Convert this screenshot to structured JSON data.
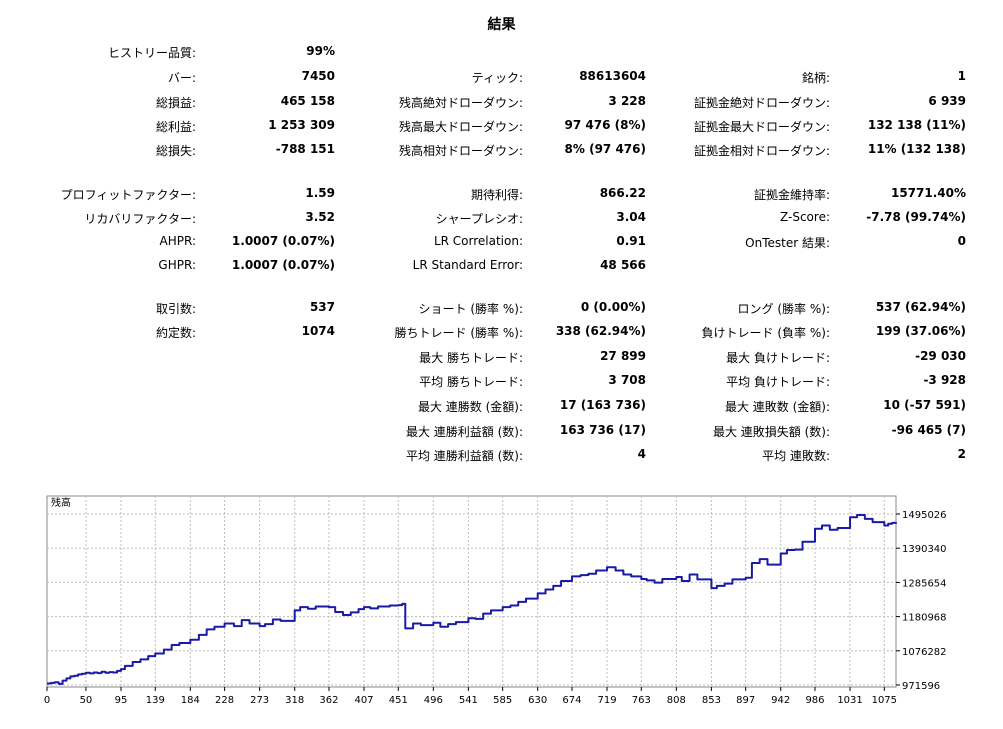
{
  "report": {
    "title": "結果",
    "history_quality": {
      "label": "ヒストリー品質:",
      "value": "99%"
    },
    "rows": [
      {
        "top": 69,
        "cells": [
          {
            "label": "バー:",
            "value": "7450"
          },
          {
            "label": "ティック:",
            "value": "88613604"
          },
          {
            "label": "銘柄:",
            "value": "1"
          }
        ]
      },
      {
        "top": 94,
        "cells": [
          {
            "label": "総損益:",
            "value": "465 158"
          },
          {
            "label": "残高絶対ドローダウン:",
            "value": "3 228"
          },
          {
            "label": "証拠金絶対ドローダウン:",
            "value": "6 939"
          }
        ]
      },
      {
        "top": 118,
        "cells": [
          {
            "label": "総利益:",
            "value": "1 253 309"
          },
          {
            "label": "残高最大ドローダウン:",
            "value": "97 476 (8%)"
          },
          {
            "label": "証拠金最大ドローダウン:",
            "value": "132 138 (11%)"
          }
        ]
      },
      {
        "top": 142,
        "cells": [
          {
            "label": "総損失:",
            "value": "-788 151"
          },
          {
            "label": "残高相対ドローダウン:",
            "value": "8% (97 476)"
          },
          {
            "label": "証拠金相対ドローダウン:",
            "value": "11% (132 138)"
          }
        ]
      },
      {
        "top": 186,
        "cells": [
          {
            "label": "プロフィットファクター:",
            "value": "1.59"
          },
          {
            "label": "期待利得:",
            "value": "866.22"
          },
          {
            "label": "証拠金維持率:",
            "value": "15771.40%"
          }
        ]
      },
      {
        "top": 210,
        "cells": [
          {
            "label": "リカバリファクター:",
            "value": "3.52"
          },
          {
            "label": "シャープレシオ:",
            "value": "3.04"
          },
          {
            "label": "Z-Score:",
            "value": "-7.78 (99.74%)"
          }
        ]
      },
      {
        "top": 234,
        "cells": [
          {
            "label": "AHPR:",
            "value": "1.0007 (0.07%)"
          },
          {
            "label": "LR Correlation:",
            "value": "0.91"
          },
          {
            "label": "OnTester 結果:",
            "value": "0"
          }
        ]
      },
      {
        "top": 258,
        "cells": [
          {
            "label": "GHPR:",
            "value": "1.0007 (0.07%)"
          },
          {
            "label": "LR Standard Error:",
            "value": "48 566"
          },
          {
            "label": "",
            "value": ""
          }
        ]
      },
      {
        "top": 300,
        "cells": [
          {
            "label": "取引数:",
            "value": "537"
          },
          {
            "label": "ショート (勝率 %):",
            "value": "0 (0.00%)"
          },
          {
            "label": "ロング (勝率 %):",
            "value": "537 (62.94%)"
          }
        ]
      },
      {
        "top": 324,
        "cells": [
          {
            "label": "約定数:",
            "value": "1074"
          },
          {
            "label": "勝ちトレード (勝率 %):",
            "value": "338 (62.94%)"
          },
          {
            "label": "負けトレード (負率 %):",
            "value": "199 (37.06%)"
          }
        ]
      },
      {
        "top": 349,
        "cells": [
          {
            "label": "",
            "value": ""
          },
          {
            "label": "最大 勝ちトレード:",
            "value": "27 899"
          },
          {
            "label": "最大 負けトレード:",
            "value": "-29 030"
          }
        ]
      },
      {
        "top": 373,
        "cells": [
          {
            "label": "",
            "value": ""
          },
          {
            "label": "平均 勝ちトレード:",
            "value": "3 708"
          },
          {
            "label": "平均 負けトレード:",
            "value": "-3 928"
          }
        ]
      },
      {
        "top": 398,
        "cells": [
          {
            "label": "",
            "value": ""
          },
          {
            "label": "最大 連勝数 (金額):",
            "value": "17 (163 736)"
          },
          {
            "label": "最大 連敗数 (金額):",
            "value": "10 (-57 591)"
          }
        ]
      },
      {
        "top": 423,
        "cells": [
          {
            "label": "",
            "value": ""
          },
          {
            "label": "最大 連勝利益額 (数):",
            "value": "163 736 (17)"
          },
          {
            "label": "最大 連敗損失額 (数):",
            "value": "-96 465 (7)"
          }
        ]
      },
      {
        "top": 447,
        "cells": [
          {
            "label": "",
            "value": ""
          },
          {
            "label": "平均 連勝利益額 (数):",
            "value": "4"
          },
          {
            "label": "平均 連敗数:",
            "value": "2"
          }
        ]
      }
    ]
  },
  "chart_data": {
    "type": "line",
    "title": "残高",
    "color": "#1a1aa8",
    "x_ticks": [
      "0",
      "50",
      "95",
      "139",
      "184",
      "228",
      "273",
      "318",
      "362",
      "407",
      "451",
      "496",
      "541",
      "585",
      "630",
      "674",
      "719",
      "763",
      "808",
      "853",
      "897",
      "942",
      "986",
      "1031",
      "1075"
    ],
    "y_ticks": [
      "1495026",
      "1390340",
      "1285654",
      "1180968",
      "1076282",
      "971596"
    ],
    "xlim": [
      0,
      1090
    ],
    "ylim": [
      971596,
      1495026
    ],
    "grid": true,
    "series": [
      {
        "x": [
          0,
          5,
          10,
          15,
          20,
          25,
          30,
          35,
          40,
          45,
          50,
          55,
          60,
          65,
          70,
          75,
          80,
          85,
          90,
          95,
          100,
          110,
          120,
          130,
          139,
          150,
          160,
          170,
          184,
          195,
          205,
          215,
          228,
          240,
          250,
          260,
          273,
          280,
          290,
          300,
          318,
          325,
          335,
          345,
          362,
          370,
          380,
          390,
          400,
          407,
          415,
          425,
          440,
          451,
          456,
          460,
          470,
          480,
          496,
          505,
          515,
          525,
          541,
          550,
          560,
          570,
          585,
          595,
          605,
          615,
          630,
          640,
          650,
          660,
          674,
          685,
          695,
          705,
          719,
          730,
          740,
          750,
          763,
          770,
          780,
          790,
          808,
          815,
          825,
          835,
          853,
          860,
          870,
          880,
          897,
          905,
          915,
          925,
          942,
          950,
          960,
          970,
          986,
          995,
          1005,
          1015,
          1031,
          1040,
          1050,
          1060,
          1075,
          1080,
          1085,
          1090
        ],
        "y": [
          976000,
          978000,
          980000,
          975000,
          985000,
          992000,
          998000,
          1000000,
          1004000,
          1006000,
          1009000,
          1007000,
          1010000,
          1008000,
          1012000,
          1009000,
          1011000,
          1010000,
          1015000,
          1020000,
          1030000,
          1042000,
          1050000,
          1060000,
          1068000,
          1080000,
          1094000,
          1100000,
          1110000,
          1125000,
          1142000,
          1150000,
          1160000,
          1152000,
          1170000,
          1160000,
          1152000,
          1158000,
          1172000,
          1168000,
          1200000,
          1210000,
          1205000,
          1212000,
          1210000,
          1195000,
          1186000,
          1194000,
          1204000,
          1210000,
          1206000,
          1212000,
          1215000,
          1216000,
          1220000,
          1145000,
          1160000,
          1155000,
          1162000,
          1150000,
          1158000,
          1164000,
          1176000,
          1174000,
          1190000,
          1200000,
          1210000,
          1215000,
          1226000,
          1236000,
          1252000,
          1264000,
          1275000,
          1290000,
          1304000,
          1308000,
          1312000,
          1322000,
          1332000,
          1322000,
          1310000,
          1304000,
          1296000,
          1292000,
          1285000,
          1296000,
          1302000,
          1290000,
          1310000,
          1295000,
          1268000,
          1275000,
          1282000,
          1295000,
          1300000,
          1345000,
          1357000,
          1340000,
          1374000,
          1385000,
          1386000,
          1410000,
          1450000,
          1460000,
          1447000,
          1452000,
          1485000,
          1492000,
          1480000,
          1470000,
          1460000,
          1465000,
          1468000,
          1470000
        ]
      }
    ]
  }
}
